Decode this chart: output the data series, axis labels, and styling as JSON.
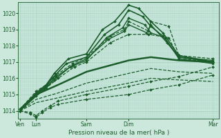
{
  "bg_color": "#cce8dc",
  "grid_color": "#aad4c4",
  "line_color": "#1a5c2a",
  "xlabel": "Pression niveau de la mer( hPa )",
  "ylim": [
    1013.5,
    1020.7
  ],
  "yticks": [
    1014,
    1015,
    1016,
    1017,
    1018,
    1019,
    1020
  ],
  "xtick_labels": [
    "Ven",
    "Lun",
    "Sam",
    "Dim",
    "Mar"
  ],
  "xtick_positions": [
    0.01,
    0.09,
    0.34,
    0.55,
    0.97
  ],
  "series": [
    {
      "x": [
        0.01,
        0.09,
        0.14,
        0.18,
        0.25,
        0.34,
        0.42,
        0.48,
        0.55,
        0.6,
        0.66,
        0.72,
        0.8,
        0.97
      ],
      "y": [
        1014.0,
        1015.1,
        1015.6,
        1016.3,
        1017.2,
        1017.5,
        1019.0,
        1019.5,
        1020.5,
        1020.3,
        1019.5,
        1018.8,
        1017.4,
        1017.0
      ],
      "style": "solid",
      "lw": 1.2,
      "marker": "D",
      "ms": 2.0
    },
    {
      "x": [
        0.01,
        0.09,
        0.13,
        0.17,
        0.24,
        0.34,
        0.43,
        0.5,
        0.55,
        0.62,
        0.66,
        0.72,
        0.8,
        0.97
      ],
      "y": [
        1014.0,
        1015.0,
        1015.4,
        1016.0,
        1016.9,
        1017.3,
        1018.7,
        1019.3,
        1020.2,
        1019.8,
        1019.2,
        1018.6,
        1017.3,
        1017.0
      ],
      "style": "solid",
      "lw": 1.2,
      "marker": "D",
      "ms": 2.0
    },
    {
      "x": [
        0.01,
        0.09,
        0.13,
        0.18,
        0.26,
        0.34,
        0.44,
        0.52,
        0.55,
        0.63,
        0.66,
        0.73,
        0.8,
        0.97
      ],
      "y": [
        1014.0,
        1014.9,
        1015.3,
        1015.9,
        1016.7,
        1017.1,
        1018.5,
        1019.1,
        1019.7,
        1019.3,
        1018.8,
        1018.5,
        1017.2,
        1016.9
      ],
      "style": "solid",
      "lw": 1.0,
      "marker": "D",
      "ms": 2.0
    },
    {
      "x": [
        0.01,
        0.09,
        0.14,
        0.19,
        0.27,
        0.34,
        0.45,
        0.53,
        0.55,
        0.64,
        0.66,
        0.74,
        0.8,
        0.97
      ],
      "y": [
        1014.1,
        1015.1,
        1015.5,
        1016.1,
        1016.8,
        1017.2,
        1018.4,
        1018.9,
        1019.3,
        1018.8,
        1019.3,
        1018.2,
        1017.3,
        1017.1
      ],
      "style": "solid",
      "lw": 1.0,
      "marker": "D",
      "ms": 2.0
    },
    {
      "x": [
        0.01,
        0.09,
        0.14,
        0.19,
        0.27,
        0.34,
        0.46,
        0.53,
        0.55,
        0.65,
        0.66,
        0.75,
        0.8,
        0.97
      ],
      "y": [
        1014.1,
        1015.2,
        1015.6,
        1016.2,
        1016.9,
        1017.3,
        1018.6,
        1019.0,
        1019.5,
        1018.9,
        1019.5,
        1019.2,
        1017.4,
        1017.2
      ],
      "style": "dashed",
      "lw": 0.9,
      "marker": "D",
      "ms": 2.0
    },
    {
      "x": [
        0.01,
        0.09,
        0.14,
        0.2,
        0.28,
        0.34,
        0.46,
        0.55,
        0.65,
        0.75,
        0.8,
        0.97
      ],
      "y": [
        1014.1,
        1015.0,
        1015.4,
        1016.0,
        1016.7,
        1017.0,
        1018.2,
        1018.7,
        1018.7,
        1018.5,
        1017.2,
        1017.0
      ],
      "style": "dashed",
      "lw": 0.9,
      "marker": "D",
      "ms": 2.0
    },
    {
      "x": [
        0.01,
        0.09,
        0.2,
        0.34,
        0.55,
        0.66,
        0.8,
        0.97
      ],
      "y": [
        1014.1,
        1015.0,
        1015.6,
        1016.4,
        1017.1,
        1017.3,
        1017.1,
        1017.0
      ],
      "style": "solid",
      "lw": 1.8,
      "marker": null,
      "ms": 0
    },
    {
      "x": [
        0.01,
        0.09,
        0.2,
        0.34,
        0.55,
        0.66,
        0.8,
        0.97
      ],
      "y": [
        1014.0,
        1014.7,
        1015.1,
        1015.7,
        1016.3,
        1016.6,
        1016.4,
        1016.3
      ],
      "style": "dashed",
      "lw": 0.9,
      "marker": null,
      "ms": 0
    },
    {
      "x": [
        0.01,
        0.09,
        0.2,
        0.34,
        0.55,
        0.66,
        0.8,
        0.97
      ],
      "y": [
        1014.0,
        1014.5,
        1014.8,
        1015.2,
        1015.7,
        1016.0,
        1015.9,
        1015.8
      ],
      "style": "dashed",
      "lw": 0.9,
      "marker": null,
      "ms": 0
    },
    {
      "x": [
        0.01,
        0.06,
        0.09,
        0.12,
        0.16,
        0.2,
        0.34,
        0.55,
        0.66,
        0.8,
        0.97
      ],
      "y": [
        1014.0,
        1013.9,
        1013.7,
        1014.0,
        1014.3,
        1014.6,
        1015.0,
        1015.5,
        1015.8,
        1016.1,
        1016.7
      ],
      "style": "dashed",
      "lw": 0.9,
      "marker": "D",
      "ms": 2.0
    },
    {
      "x": [
        0.01,
        0.06,
        0.09,
        0.12,
        0.16,
        0.2,
        0.34,
        0.55,
        0.66,
        0.8,
        0.97
      ],
      "y": [
        1014.0,
        1013.8,
        1013.6,
        1013.9,
        1014.2,
        1014.4,
        1014.7,
        1015.0,
        1015.3,
        1015.6,
        1016.2
      ],
      "style": "dashed",
      "lw": 0.9,
      "marker": "D",
      "ms": 2.0
    }
  ]
}
